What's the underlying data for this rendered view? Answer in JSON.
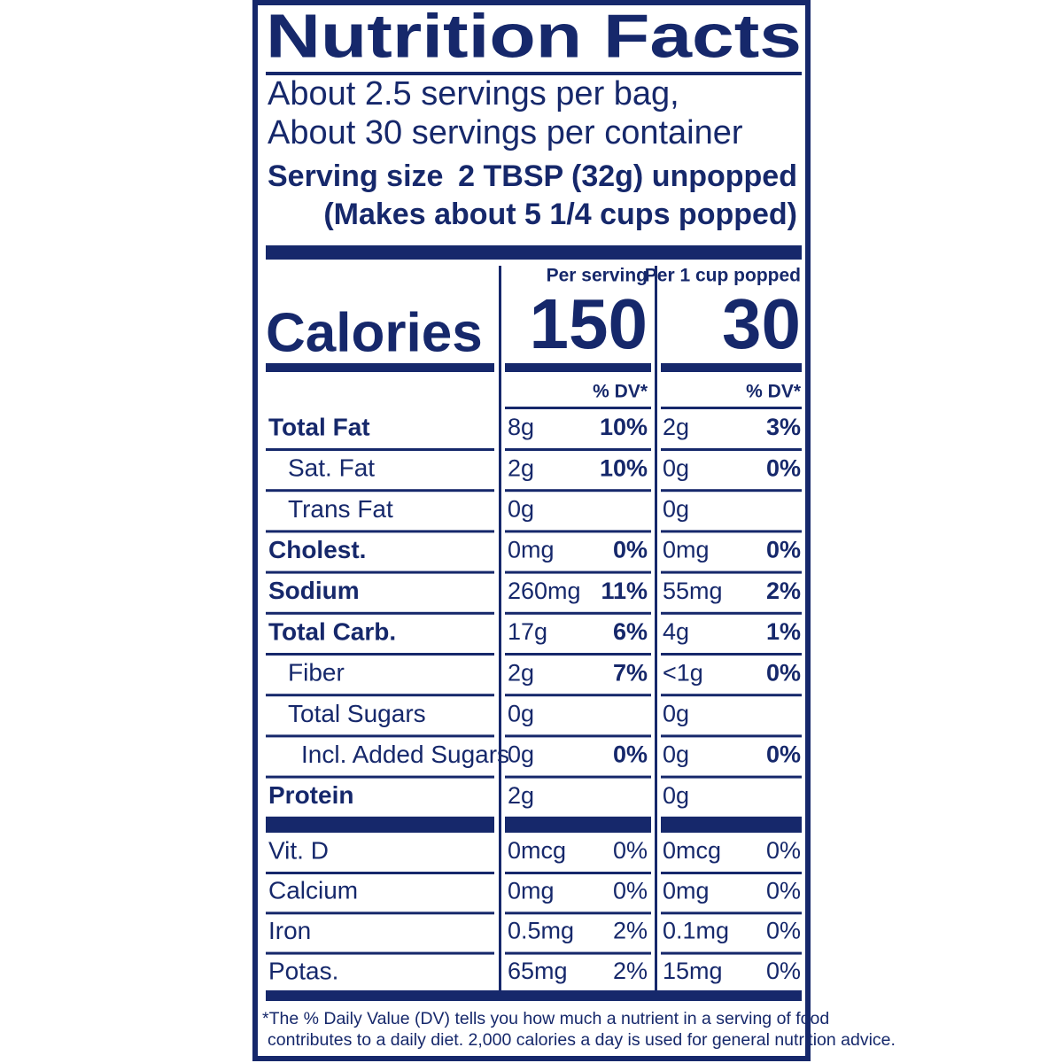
{
  "header": {
    "title": "Nutrition Facts"
  },
  "servings": [
    "About 2.5 servings per bag,",
    "About 30 servings per container"
  ],
  "serving_size": {
    "label": "Serving size",
    "value": "2 TBSP (32g) unpopped",
    "note": "(Makes about 5 1/4 cups popped)"
  },
  "columns": [
    "Per serving",
    "Per 1 cup popped"
  ],
  "calories": {
    "label": "Calories",
    "values": [
      "150",
      "30"
    ]
  },
  "dv_header": "% DV*",
  "nutrients": [
    {
      "label": "Total Fat",
      "cols": [
        {
          "amount": "8g",
          "dv": "10%"
        },
        {
          "amount": "2g",
          "dv": "3%"
        }
      ]
    },
    {
      "label": "Sat. Fat",
      "cols": [
        {
          "amount": "2g",
          "dv": "10%"
        },
        {
          "amount": "0g",
          "dv": "0%"
        }
      ]
    },
    {
      "label": "Trans Fat",
      "cols": [
        {
          "amount": "0g"
        },
        {
          "amount": "0g"
        }
      ]
    },
    {
      "label": "Cholest.",
      "cols": [
        {
          "amount": "0mg",
          "dv": "0%"
        },
        {
          "amount": "0mg",
          "dv": "0%"
        }
      ]
    },
    {
      "label": "Sodium",
      "cols": [
        {
          "amount": "260mg",
          "dv": "11%"
        },
        {
          "amount": "55mg",
          "dv": "2%"
        }
      ]
    },
    {
      "label": "Total Carb.",
      "cols": [
        {
          "amount": "17g",
          "dv": "6%"
        },
        {
          "amount": "4g",
          "dv": "1%"
        }
      ]
    },
    {
      "label": "Fiber",
      "cols": [
        {
          "amount": "2g",
          "dv": "7%"
        },
        {
          "amount": "<1g",
          "dv": "0%"
        }
      ]
    },
    {
      "label": "Total Sugars",
      "cols": [
        {
          "amount": "0g"
        },
        {
          "amount": "0g"
        }
      ]
    },
    {
      "label": "Incl. Added Sugars",
      "cols": [
        {
          "amount": "0g",
          "dv": "0%"
        },
        {
          "amount": "0g",
          "dv": "0%"
        }
      ]
    },
    {
      "label": "Protein",
      "cols": [
        {
          "amount": "2g"
        },
        {
          "amount": "0g"
        }
      ]
    }
  ],
  "vitamins": [
    {
      "label": "Vit. D",
      "cols": [
        {
          "amount": "0mcg",
          "dv": "0%"
        },
        {
          "amount": "0mcg",
          "dv": "0%"
        }
      ]
    },
    {
      "label": "Calcium",
      "cols": [
        {
          "amount": "0mg",
          "dv": "0%"
        },
        {
          "amount": "0mg",
          "dv": "0%"
        }
      ]
    },
    {
      "label": "Iron",
      "cols": [
        {
          "amount": "0.5mg",
          "dv": "2%"
        },
        {
          "amount": "0.1mg",
          "dv": "0%"
        }
      ]
    },
    {
      "label": "Potas.",
      "cols": [
        {
          "amount": "65mg",
          "dv": "2%"
        },
        {
          "amount": "15mg",
          "dv": "0%"
        }
      ]
    }
  ],
  "footnote": [
    "*The % Daily Value (DV) tells you how much a nutrient in a serving of food",
    "contributes to a daily diet. 2,000 calories a day is used for general nutrition advice."
  ]
}
